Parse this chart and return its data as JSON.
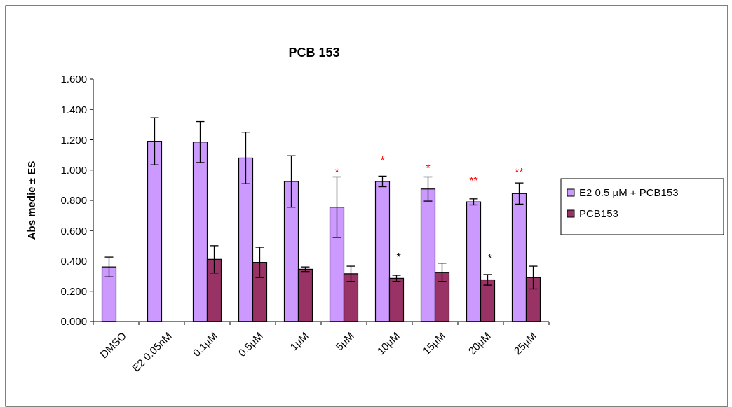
{
  "chart_data": {
    "type": "bar",
    "title": "PCB 153",
    "ylabel": "Abs medie ± ES",
    "categories": [
      "DMSO",
      "E2 0.05nM",
      "0.1µM",
      "0.5µM",
      "1µM",
      "5µM",
      "10µM",
      "15µM",
      "20µM",
      "25µM"
    ],
    "series": [
      {
        "name": "E2 0.5 µM + PCB153",
        "color": "#cc99ff",
        "values": [
          0.36,
          1.19,
          1.185,
          1.08,
          0.925,
          0.755,
          0.925,
          0.875,
          0.79,
          0.845
        ],
        "errors": [
          0.065,
          0.155,
          0.135,
          0.17,
          0.17,
          0.2,
          0.035,
          0.08,
          0.02,
          0.07
        ]
      },
      {
        "name": "PCB153",
        "color": "#993366",
        "values": [
          0,
          0,
          0.41,
          0.39,
          0.345,
          0.315,
          0.285,
          0.325,
          0.275,
          0.29
        ],
        "errors": [
          null,
          null,
          0.09,
          0.1,
          0.015,
          0.05,
          0.02,
          0.06,
          0.035,
          0.075
        ]
      }
    ],
    "ylim": [
      0,
      1.6
    ],
    "yticks": [
      {
        "value": 0,
        "label": "0.000"
      },
      {
        "value": 0.2,
        "label": "0.200"
      },
      {
        "value": 0.4,
        "label": "0.400"
      },
      {
        "value": 0.6,
        "label": "0.600"
      },
      {
        "value": 0.8,
        "label": "0.800"
      },
      {
        "value": 1,
        "label": "1.000"
      },
      {
        "value": 1.2,
        "label": "1.200"
      },
      {
        "value": 1.4,
        "label": "1.400"
      },
      {
        "value": 1.6,
        "label": "1.600"
      }
    ],
    "legend": "right",
    "grid": false,
    "annotations": [
      {
        "text": "*",
        "x": "5µM",
        "y": 0.755
      },
      {
        "text": "*",
        "x": "10µM",
        "y": 0.925
      },
      {
        "text": "*",
        "x": "15µM",
        "y": 0.875
      },
      {
        "text": "**",
        "x": "20µM",
        "y": 0.79
      },
      {
        "text": "**",
        "x": "25µM",
        "y": 0.845
      },
      {
        "text": "*",
        "x": "10µM",
        "y": 0.285
      },
      {
        "text": "*",
        "x": "20µM",
        "y": 0.275
      }
    ]
  }
}
